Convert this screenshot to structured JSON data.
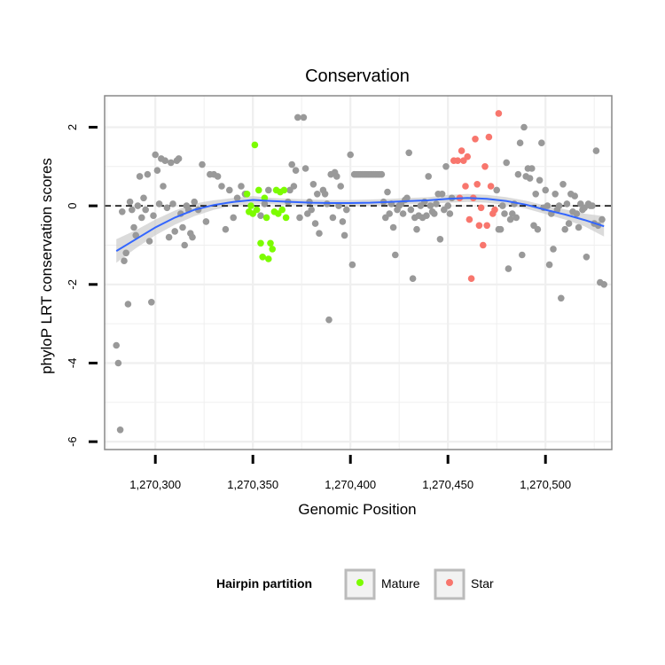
{
  "chart_data": {
    "type": "scatter",
    "title": "Conservation",
    "xlabel": "Genomic Position",
    "ylabel": "phyloP LRT conservation scores",
    "xlim": [
      1270274,
      1270534
    ],
    "ylim": [
      -6.2,
      2.8
    ],
    "x_ticks": [
      1270300,
      1270350,
      1270400,
      1270450,
      1270500
    ],
    "x_tick_labels": [
      "1,270,300",
      "1,270,350",
      "1,270,400",
      "1,270,450",
      "1,270,500"
    ],
    "y_ticks": [
      -6,
      -4,
      -2,
      0,
      2
    ],
    "y_tick_labels": [
      "-6",
      "-4",
      "-2",
      "0",
      "2"
    ],
    "reference_line": {
      "y": 0,
      "style": "dashed",
      "color": "#000000"
    },
    "grid": true,
    "colors": {
      "other": "#999999",
      "mature": "#7CFC00",
      "star": "#F8766D",
      "smooth": "#3366FF",
      "band": "#CCCCCC",
      "panel_border": "#888888",
      "grid": "#EFEFEF"
    },
    "legend": {
      "title": "Hairpin partition",
      "position": "bottom",
      "entries": [
        {
          "label": "Mature",
          "color": "#7CFC00"
        },
        {
          "label": "Star",
          "color": "#F8766D"
        }
      ]
    },
    "series": [
      {
        "name": "Other",
        "color": "#999999",
        "points": [
          [
            1270280,
            -3.55
          ],
          [
            1270281,
            -4.0
          ],
          [
            1270282,
            -5.7
          ],
          [
            1270283,
            -0.15
          ],
          [
            1270284,
            -1.4
          ],
          [
            1270285,
            -1.2
          ],
          [
            1270286,
            -2.5
          ],
          [
            1270287,
            0.1
          ],
          [
            1270288,
            -0.1
          ],
          [
            1270289,
            -0.55
          ],
          [
            1270290,
            -0.75
          ],
          [
            1270291,
            0.0
          ],
          [
            1270292,
            0.75
          ],
          [
            1270293,
            -0.3
          ],
          [
            1270294,
            0.2
          ],
          [
            1270295,
            -0.1
          ],
          [
            1270296,
            0.8
          ],
          [
            1270297,
            -0.9
          ],
          [
            1270298,
            -2.45
          ],
          [
            1270299,
            -0.25
          ],
          [
            1270300,
            1.3
          ],
          [
            1270301,
            0.9
          ],
          [
            1270302,
            0.05
          ],
          [
            1270303,
            1.2
          ],
          [
            1270304,
            0.5
          ],
          [
            1270305,
            1.15
          ],
          [
            1270306,
            -0.05
          ],
          [
            1270307,
            -0.8
          ],
          [
            1270308,
            1.1
          ],
          [
            1270309,
            0.05
          ],
          [
            1270310,
            -0.65
          ],
          [
            1270311,
            1.15
          ],
          [
            1270312,
            1.2
          ],
          [
            1270313,
            -0.2
          ],
          [
            1270314,
            -0.55
          ],
          [
            1270315,
            -1.0
          ],
          [
            1270316,
            0.0
          ],
          [
            1270317,
            -0.1
          ],
          [
            1270318,
            -0.7
          ],
          [
            1270319,
            -0.8
          ],
          [
            1270320,
            0.1
          ],
          [
            1270322,
            -0.1
          ],
          [
            1270324,
            1.05
          ],
          [
            1270326,
            -0.4
          ],
          [
            1270328,
            0.8
          ],
          [
            1270330,
            0.8
          ],
          [
            1270332,
            0.75
          ],
          [
            1270334,
            0.5
          ],
          [
            1270336,
            -0.6
          ],
          [
            1270338,
            0.4
          ],
          [
            1270340,
            -0.3
          ],
          [
            1270342,
            0.2
          ],
          [
            1270344,
            0.5
          ],
          [
            1270346,
            0.3
          ],
          [
            1270354,
            -0.25
          ],
          [
            1270356,
            0.05
          ],
          [
            1270358,
            0.4
          ],
          [
            1270368,
            0.1
          ],
          [
            1270369,
            0.4
          ],
          [
            1270370,
            1.05
          ],
          [
            1270371,
            0.5
          ],
          [
            1270372,
            0.9
          ],
          [
            1270373,
            2.25
          ],
          [
            1270374,
            -0.3
          ],
          [
            1270376,
            2.25
          ],
          [
            1270377,
            0.95
          ],
          [
            1270378,
            -0.2
          ],
          [
            1270379,
            0.1
          ],
          [
            1270380,
            -0.1
          ],
          [
            1270381,
            0.55
          ],
          [
            1270382,
            -0.45
          ],
          [
            1270383,
            0.3
          ],
          [
            1270384,
            -0.7
          ],
          [
            1270386,
            0.4
          ],
          [
            1270387,
            0.3
          ],
          [
            1270388,
            0.05
          ],
          [
            1270389,
            -2.9
          ],
          [
            1270390,
            0.8
          ],
          [
            1270391,
            -0.3
          ],
          [
            1270392,
            0.85
          ],
          [
            1270393,
            0.75
          ],
          [
            1270394,
            0.0
          ],
          [
            1270395,
            0.5
          ],
          [
            1270396,
            -0.4
          ],
          [
            1270397,
            -0.75
          ],
          [
            1270398,
            -0.1
          ],
          [
            1270400,
            1.3
          ],
          [
            1270401,
            -1.5
          ],
          [
            1270402,
            0.8
          ],
          [
            1270403,
            0.8
          ],
          [
            1270404,
            0.8
          ],
          [
            1270405,
            0.8
          ],
          [
            1270406,
            0.8
          ],
          [
            1270407,
            0.8
          ],
          [
            1270408,
            0.8
          ],
          [
            1270409,
            0.8
          ],
          [
            1270410,
            0.8
          ],
          [
            1270411,
            0.8
          ],
          [
            1270412,
            0.8
          ],
          [
            1270413,
            0.8
          ],
          [
            1270414,
            0.8
          ],
          [
            1270415,
            0.8
          ],
          [
            1270416,
            0.8
          ],
          [
            1270417,
            0.1
          ],
          [
            1270418,
            -0.3
          ],
          [
            1270419,
            0.35
          ],
          [
            1270420,
            -0.2
          ],
          [
            1270421,
            0.05
          ],
          [
            1270422,
            -0.55
          ],
          [
            1270423,
            -1.25
          ],
          [
            1270424,
            -0.1
          ],
          [
            1270425,
            0.0
          ],
          [
            1270426,
            0.05
          ],
          [
            1270427,
            -0.2
          ],
          [
            1270428,
            0.15
          ],
          [
            1270429,
            0.2
          ],
          [
            1270430,
            1.35
          ],
          [
            1270431,
            -0.1
          ],
          [
            1270432,
            -1.85
          ],
          [
            1270433,
            -0.3
          ],
          [
            1270434,
            -0.6
          ],
          [
            1270435,
            -0.25
          ],
          [
            1270436,
            0.0
          ],
          [
            1270437,
            -0.3
          ],
          [
            1270438,
            0.1
          ],
          [
            1270439,
            -0.25
          ],
          [
            1270440,
            0.75
          ],
          [
            1270441,
            0.0
          ],
          [
            1270442,
            -0.15
          ],
          [
            1270443,
            -0.2
          ],
          [
            1270444,
            0.05
          ],
          [
            1270445,
            0.3
          ],
          [
            1270446,
            -0.85
          ],
          [
            1270447,
            0.3
          ],
          [
            1270448,
            -0.1
          ],
          [
            1270449,
            1.0
          ],
          [
            1270450,
            0.0
          ],
          [
            1270451,
            -0.2
          ],
          [
            1270452,
            0.2
          ],
          [
            1270475,
            0.4
          ],
          [
            1270476,
            -0.6
          ],
          [
            1270477,
            -0.6
          ],
          [
            1270478,
            0.0
          ],
          [
            1270479,
            -0.2
          ],
          [
            1270480,
            1.1
          ],
          [
            1270481,
            -1.6
          ],
          [
            1270482,
            -0.35
          ],
          [
            1270483,
            -0.2
          ],
          [
            1270484,
            0.05
          ],
          [
            1270485,
            -0.3
          ],
          [
            1270486,
            0.8
          ],
          [
            1270487,
            1.6
          ],
          [
            1270488,
            -1.25
          ],
          [
            1270489,
            2.0
          ],
          [
            1270490,
            0.75
          ],
          [
            1270491,
            0.95
          ],
          [
            1270492,
            0.7
          ],
          [
            1270493,
            0.95
          ],
          [
            1270494,
            -0.5
          ],
          [
            1270495,
            0.3
          ],
          [
            1270496,
            -0.6
          ],
          [
            1270497,
            0.65
          ],
          [
            1270498,
            1.6
          ],
          [
            1270499,
            -0.05
          ],
          [
            1270500,
            0.4
          ],
          [
            1270501,
            0.0
          ],
          [
            1270502,
            -1.5
          ],
          [
            1270503,
            -0.2
          ],
          [
            1270504,
            -1.1
          ],
          [
            1270505,
            0.3
          ],
          [
            1270506,
            -0.1
          ],
          [
            1270507,
            0.0
          ],
          [
            1270508,
            -2.35
          ],
          [
            1270509,
            0.55
          ],
          [
            1270510,
            -0.6
          ],
          [
            1270511,
            0.05
          ],
          [
            1270512,
            -0.45
          ],
          [
            1270513,
            0.3
          ],
          [
            1270514,
            -0.15
          ],
          [
            1270515,
            0.25
          ],
          [
            1270516,
            -0.2
          ],
          [
            1270517,
            -0.55
          ],
          [
            1270518,
            0.05
          ],
          [
            1270519,
            -0.1
          ],
          [
            1270520,
            -0.05
          ],
          [
            1270521,
            -1.3
          ],
          [
            1270522,
            0.05
          ],
          [
            1270523,
            0.0
          ],
          [
            1270524,
            0.0
          ],
          [
            1270525,
            -0.45
          ],
          [
            1270526,
            1.4
          ],
          [
            1270527,
            -0.5
          ],
          [
            1270528,
            -1.95
          ],
          [
            1270529,
            -0.35
          ],
          [
            1270530,
            -2.0
          ]
        ]
      },
      {
        "name": "Mature",
        "color": "#7CFC00",
        "points": [
          [
            1270347,
            0.3
          ],
          [
            1270348,
            -0.15
          ],
          [
            1270349,
            0.0
          ],
          [
            1270350,
            -0.2
          ],
          [
            1270351,
            1.55
          ],
          [
            1270352,
            -0.1
          ],
          [
            1270353,
            0.4
          ],
          [
            1270354,
            -0.95
          ],
          [
            1270355,
            -1.3
          ],
          [
            1270356,
            0.2
          ],
          [
            1270357,
            -0.3
          ],
          [
            1270358,
            -1.35
          ],
          [
            1270359,
            -0.95
          ],
          [
            1270360,
            -1.1
          ],
          [
            1270361,
            -0.15
          ],
          [
            1270362,
            0.4
          ],
          [
            1270363,
            -0.2
          ],
          [
            1270364,
            0.35
          ],
          [
            1270365,
            -0.1
          ],
          [
            1270366,
            0.4
          ],
          [
            1270367,
            -0.3
          ]
        ]
      },
      {
        "name": "Star",
        "color": "#F8766D",
        "points": [
          [
            1270453,
            1.15
          ],
          [
            1270455,
            1.15
          ],
          [
            1270456,
            0.2
          ],
          [
            1270457,
            1.4
          ],
          [
            1270458,
            1.15
          ],
          [
            1270459,
            0.5
          ],
          [
            1270460,
            1.25
          ],
          [
            1270461,
            -0.35
          ],
          [
            1270462,
            -1.85
          ],
          [
            1270463,
            0.2
          ],
          [
            1270464,
            1.7
          ],
          [
            1270465,
            0.55
          ],
          [
            1270466,
            -0.5
          ],
          [
            1270467,
            -0.05
          ],
          [
            1270468,
            -1.0
          ],
          [
            1270469,
            1.0
          ],
          [
            1270470,
            -0.5
          ],
          [
            1270471,
            1.75
          ],
          [
            1270472,
            0.5
          ],
          [
            1270473,
            -0.2
          ],
          [
            1270474,
            -0.1
          ],
          [
            1270476,
            2.35
          ]
        ]
      }
    ],
    "smooth": {
      "method": "loess",
      "x": [
        1270280,
        1270290,
        1270300,
        1270310,
        1270320,
        1270330,
        1270340,
        1270350,
        1270360,
        1270370,
        1270380,
        1270390,
        1270400,
        1270410,
        1270420,
        1270430,
        1270440,
        1270450,
        1270460,
        1270470,
        1270480,
        1270490,
        1270500,
        1270510,
        1270520,
        1270530
      ],
      "y": [
        -1.15,
        -0.85,
        -0.55,
        -0.3,
        -0.1,
        0.02,
        0.1,
        0.15,
        0.12,
        0.1,
        0.08,
        0.07,
        0.07,
        0.08,
        0.1,
        0.12,
        0.14,
        0.18,
        0.2,
        0.18,
        0.12,
        0.03,
        -0.1,
        -0.22,
        -0.36,
        -0.52
      ],
      "lower": [
        -1.45,
        -1.08,
        -0.75,
        -0.48,
        -0.26,
        -0.1,
        0.0,
        0.05,
        0.04,
        0.02,
        0.0,
        -0.01,
        -0.01,
        0.0,
        0.02,
        0.04,
        0.06,
        0.08,
        0.1,
        0.08,
        0.02,
        -0.07,
        -0.21,
        -0.35,
        -0.52,
        -0.78
      ],
      "upper": [
        -0.85,
        -0.62,
        -0.35,
        -0.12,
        0.06,
        0.14,
        0.2,
        0.25,
        0.2,
        0.18,
        0.16,
        0.15,
        0.15,
        0.16,
        0.18,
        0.2,
        0.22,
        0.28,
        0.3,
        0.28,
        0.22,
        0.13,
        0.01,
        -0.09,
        -0.2,
        -0.26
      ]
    }
  }
}
